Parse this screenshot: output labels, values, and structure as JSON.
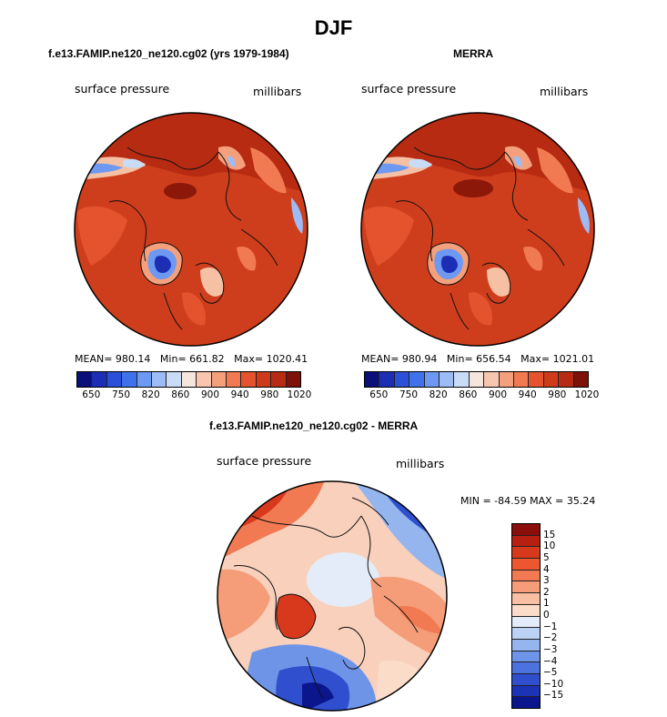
{
  "title": "DJF",
  "panels": [
    {
      "subtitle": "f.e13.FAMIP.ne120_ne120.cg02 (yrs 1979-1984)",
      "left_label": "surface pressure",
      "right_label": "millibars",
      "stats": {
        "mean_label": "MEAN=",
        "mean": "980.14",
        "min_label": "Min=",
        "min": "661.82",
        "max_label": "Max=",
        "max": "1020.41"
      }
    },
    {
      "subtitle": "MERRA",
      "left_label": "surface pressure",
      "right_label": "millibars",
      "stats": {
        "mean_label": "MEAN=",
        "mean": "980.94",
        "min_label": "Min=",
        "min": "656.54",
        "max_label": "Max=",
        "max": "1021.01"
      }
    }
  ],
  "colorbar": {
    "colors": [
      "#0a0f7a",
      "#1b2eb4",
      "#2a4fd8",
      "#3f72ea",
      "#6d99f2",
      "#9dbbf4",
      "#c9dcf7",
      "#f5e5dd",
      "#f8c5ae",
      "#f5a07c",
      "#f17a52",
      "#e4532d",
      "#cf3a1a",
      "#b72b12",
      "#7e1208"
    ],
    "ticks": [
      "650",
      "750",
      "820",
      "860",
      "900",
      "940",
      "980",
      "1020"
    ]
  },
  "diff": {
    "subtitle": "f.e13.FAMIP.ne120_ne120.cg02 - MERRA",
    "left_label": "surface pressure",
    "right_label": "millibars",
    "minmax": "MIN = -84.59 MAX =  35.24",
    "colorbar": {
      "colors": [
        "#8a0e0a",
        "#b71f10",
        "#d8391c",
        "#ec5730",
        "#f27a52",
        "#f59c78",
        "#f8bfa2",
        "#fbdcc9",
        "#e3ecf8",
        "#bcd2f4",
        "#94b5ee",
        "#6e94e8",
        "#4c72df",
        "#2f4fcf",
        "#1b33b5",
        "#0b168d"
      ],
      "ticks": [
        "15",
        "10",
        "5",
        "4",
        "3",
        "2",
        "1",
        "0",
        "−1",
        "−2",
        "−3",
        "−4",
        "−5",
        "−10",
        "−15"
      ]
    }
  }
}
